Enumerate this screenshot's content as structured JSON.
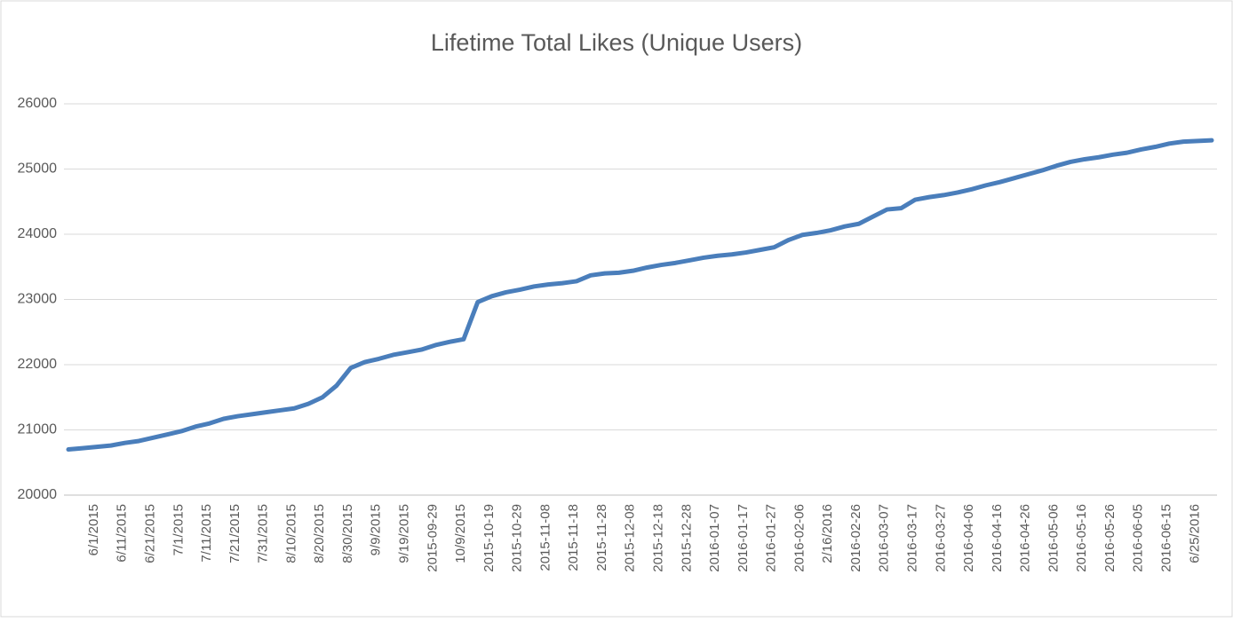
{
  "chart_data": {
    "type": "line",
    "title": "Lifetime Total Likes (Unique Users)",
    "categories": [
      "6/1/2015",
      null,
      "6/11/2015",
      null,
      "6/21/2015",
      null,
      "7/1/2015",
      null,
      "7/11/2015",
      null,
      "7/21/2015",
      null,
      "7/31/2015",
      null,
      "8/10/2015",
      null,
      "8/20/2015",
      null,
      "8/30/2015",
      null,
      "9/9/2015",
      null,
      "9/19/2015",
      null,
      "2015-09-29",
      null,
      "10/9/2015",
      null,
      "2015-10-19",
      null,
      "2015-10-29",
      null,
      "2015-11-08",
      null,
      "2015-11-18",
      null,
      "2015-11-28",
      null,
      "2015-12-08",
      null,
      "2015-12-18",
      null,
      "2015-12-28",
      null,
      "2016-01-07",
      null,
      "2016-01-17",
      null,
      "2016-01-27",
      null,
      "2016-02-06",
      null,
      "2/16/2016",
      null,
      "2016-02-26",
      null,
      "2016-03-07",
      null,
      "2016-03-17",
      null,
      "2016-03-27",
      null,
      "2016-04-06",
      null,
      "2016-04-16",
      null,
      "2016-04-26",
      null,
      "2016-05-06",
      null,
      "2016-05-16",
      null,
      "2016-05-26",
      null,
      "2016-06-05",
      null,
      "2016-06-15",
      null,
      "6/25/2016",
      null,
      null,
      null
    ],
    "series": [
      {
        "name": "Lifetime Total Likes (Unique Users)",
        "color": "#4a7ebb",
        "values": [
          20700,
          20720,
          20740,
          20760,
          20800,
          20830,
          20880,
          20930,
          20980,
          21050,
          21100,
          21170,
          21210,
          21240,
          21270,
          21300,
          21330,
          21400,
          21500,
          21680,
          21950,
          22040,
          22090,
          22150,
          22190,
          22230,
          22300,
          22350,
          22390,
          22960,
          23050,
          23110,
          23150,
          23200,
          23230,
          23250,
          23280,
          23370,
          23400,
          23410,
          23440,
          23490,
          23530,
          23560,
          23600,
          23640,
          23670,
          23690,
          23720,
          23760,
          23800,
          23910,
          23990,
          24020,
          24060,
          24120,
          24160,
          24270,
          24380,
          24400,
          24530,
          24570,
          24600,
          24640,
          24690,
          24750,
          24800,
          24860,
          24920,
          24980,
          25050,
          25110,
          25150,
          25180,
          25220,
          25250,
          25300,
          25340,
          25390,
          25420,
          25430,
          25440
        ]
      }
    ],
    "ylim": [
      20000,
      26000
    ],
    "yticks": [
      20000,
      21000,
      22000,
      23000,
      24000,
      25000,
      26000
    ],
    "grid": true
  }
}
